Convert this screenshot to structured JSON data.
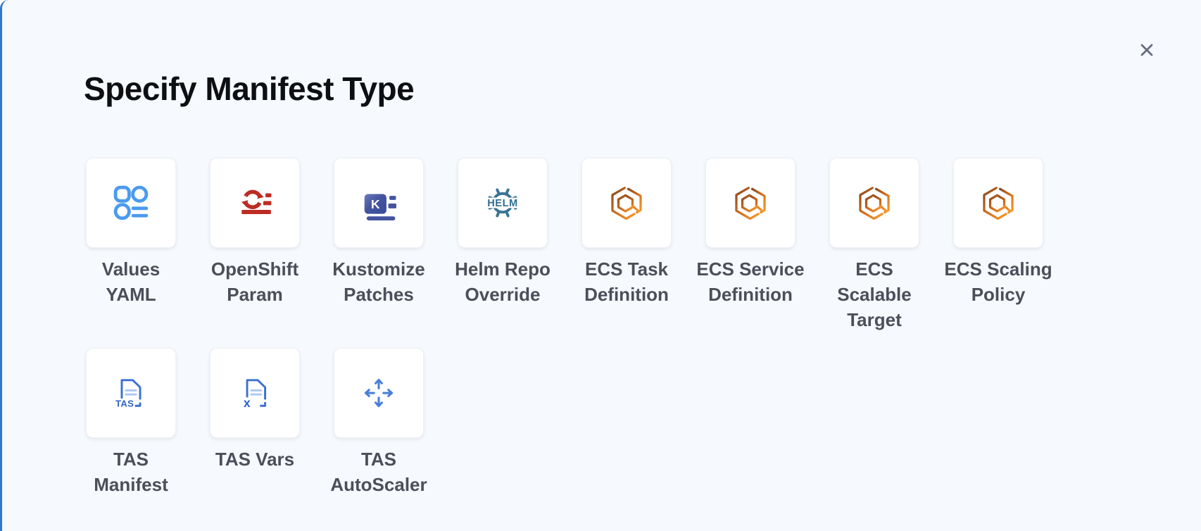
{
  "modal": {
    "title": "Specify Manifest Type"
  },
  "colors": {
    "background": "#f6f9fd",
    "accent_left_border": "#3078cd",
    "card_background": "#ffffff",
    "title_text": "#0e0f12",
    "label_text": "#4c4e5a",
    "values_yaml_blue": "#4a9bef",
    "openshift_red": "#bd2c23",
    "kustomize_indigo": "#44549f",
    "helm_teal": "#3a7395",
    "ecs_orange_dark": "#8a4820",
    "ecs_orange_light": "#f89b2b",
    "tas_blue": "#3b70d3",
    "close_gray": "#696c80"
  },
  "icon_text": {
    "kustomize": "K",
    "helm": "HELM",
    "tas_manifest": "TAS",
    "tas_vars": "x"
  },
  "manifest_types": [
    {
      "id": "values-yaml",
      "label": "Values\nYAML",
      "icon": "values-yaml-icon",
      "row": 1
    },
    {
      "id": "openshift-param",
      "label": "OpenShift\nParam",
      "icon": "openshift-param-icon",
      "row": 1
    },
    {
      "id": "kustomize-patches",
      "label": "Kustomize\nPatches",
      "icon": "kustomize-patches-icon",
      "row": 1
    },
    {
      "id": "helm-repo-override",
      "label": "Helm Repo\nOverride",
      "icon": "helm-repo-override-icon",
      "row": 1
    },
    {
      "id": "ecs-task-definition",
      "label": "ECS Task\nDefinition",
      "icon": "ecs-hexagon-icon",
      "row": 1
    },
    {
      "id": "ecs-service-definition",
      "label": "ECS Service\nDefinition",
      "icon": "ecs-hexagon-icon",
      "row": 1
    },
    {
      "id": "ecs-scalable-target",
      "label": "ECS\nScalable\nTarget",
      "icon": "ecs-hexagon-icon",
      "row": 1
    },
    {
      "id": "ecs-scaling-policy",
      "label": "ECS Scaling\nPolicy",
      "icon": "ecs-hexagon-icon",
      "row": 1
    },
    {
      "id": "tas-manifest",
      "label": "TAS\nManifest",
      "icon": "tas-manifest-icon",
      "row": 2
    },
    {
      "id": "tas-vars",
      "label": "TAS Vars",
      "icon": "tas-vars-icon",
      "row": 2
    },
    {
      "id": "tas-autoscaler",
      "label": "TAS\nAutoScaler",
      "icon": "tas-autoscaler-icon",
      "row": 2
    }
  ]
}
